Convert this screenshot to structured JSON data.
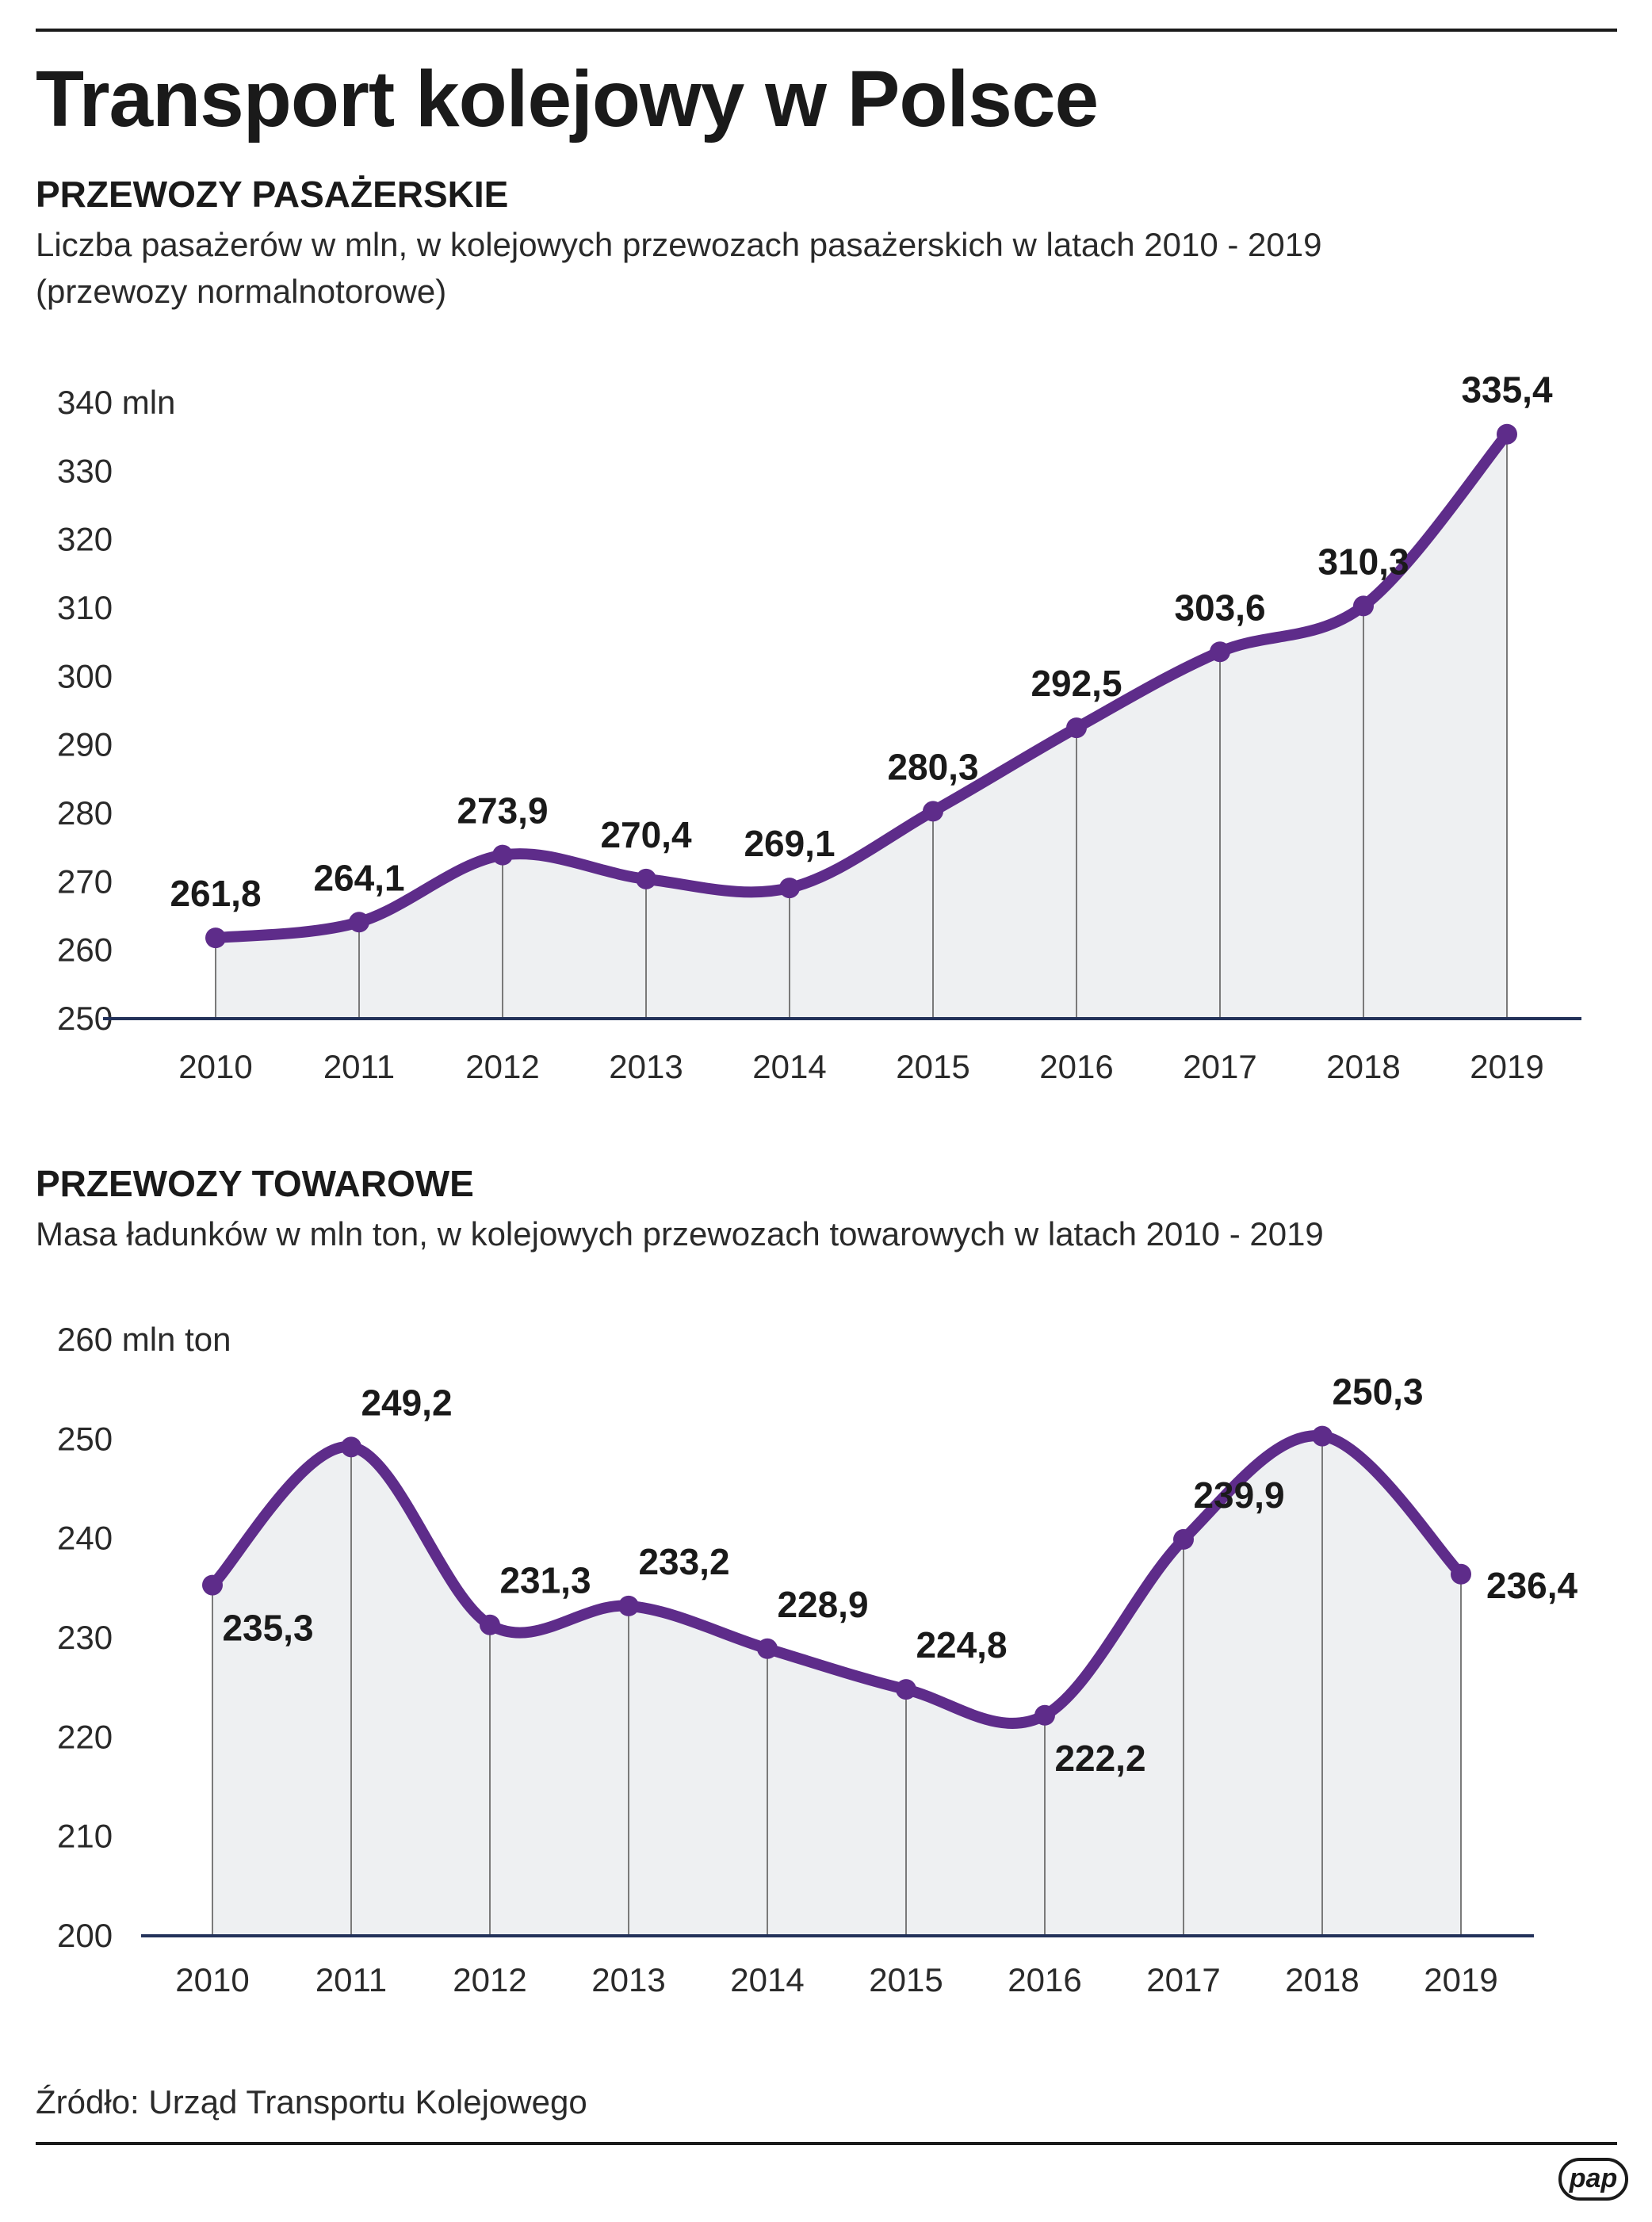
{
  "title": "Transport kolejowy w Polsce",
  "source": "Źródło: Urząd Transportu Kolejowego",
  "logo": "pap",
  "colors": {
    "line": "#5e2c8a",
    "fill": "#eef0f2",
    "axis": "#23325a",
    "text": "#1a1a1a"
  },
  "sections": {
    "passenger": {
      "heading": "PRZEWOZY PASAŻERSKIE",
      "subtitle_line1": "Liczba pasażerów w mln, w kolejowych przewozach pasażerskich w latach 2010 - 2019",
      "subtitle_line2": "(przewozy normalnotorowe)"
    },
    "freight": {
      "heading": "PRZEWOZY TOWAROWE",
      "subtitle_line1": "Masa ładunków w mln ton, w kolejowych przewozach towarowych w latach 2010 - 2019"
    }
  },
  "chart_data": [
    {
      "type": "area",
      "title": "PRZEWOZY PASAŻERSKIE",
      "unit_label": "340 mln",
      "categories": [
        "2010",
        "2011",
        "2012",
        "2013",
        "2014",
        "2015",
        "2016",
        "2017",
        "2018",
        "2019"
      ],
      "values": [
        261.8,
        264.1,
        273.9,
        270.4,
        269.1,
        280.3,
        292.5,
        303.6,
        310.3,
        335.4
      ],
      "value_labels": [
        "261,8",
        "264,1",
        "273,9",
        "270,4",
        "269,1",
        "280,3",
        "292,5",
        "303,6",
        "310,3",
        "335,4"
      ],
      "label_positions": [
        "above",
        "above",
        "above",
        "above",
        "above",
        "above",
        "above",
        "above",
        "above",
        "above"
      ],
      "ylim": [
        250,
        340
      ],
      "yticks": [
        250,
        260,
        270,
        280,
        290,
        300,
        310,
        320,
        330,
        340
      ],
      "ytick_labels": [
        "250",
        "260",
        "270",
        "280",
        "290",
        "300",
        "310",
        "320",
        "330",
        "340 mln"
      ],
      "grid": false
    },
    {
      "type": "area",
      "title": "PRZEWOZY TOWAROWE",
      "unit_label": "260 mln ton",
      "categories": [
        "2010",
        "2011",
        "2012",
        "2013",
        "2014",
        "2015",
        "2016",
        "2017",
        "2018",
        "2019"
      ],
      "values": [
        235.3,
        249.2,
        231.3,
        233.2,
        228.9,
        224.8,
        222.2,
        239.9,
        250.3,
        236.4
      ],
      "value_labels": [
        "235,3",
        "249,2",
        "231,3",
        "233,2",
        "228,9",
        "224,8",
        "222,2",
        "239,9",
        "250,3",
        "236,4"
      ],
      "label_positions": [
        "below",
        "above",
        "above",
        "above",
        "above",
        "above",
        "below",
        "above",
        "above",
        "right"
      ],
      "ylim": [
        200,
        260
      ],
      "yticks": [
        200,
        210,
        220,
        230,
        240,
        250,
        260
      ],
      "ytick_labels": [
        "200",
        "210",
        "220",
        "230",
        "240",
        "250",
        "260 mln ton"
      ],
      "grid": false
    }
  ]
}
